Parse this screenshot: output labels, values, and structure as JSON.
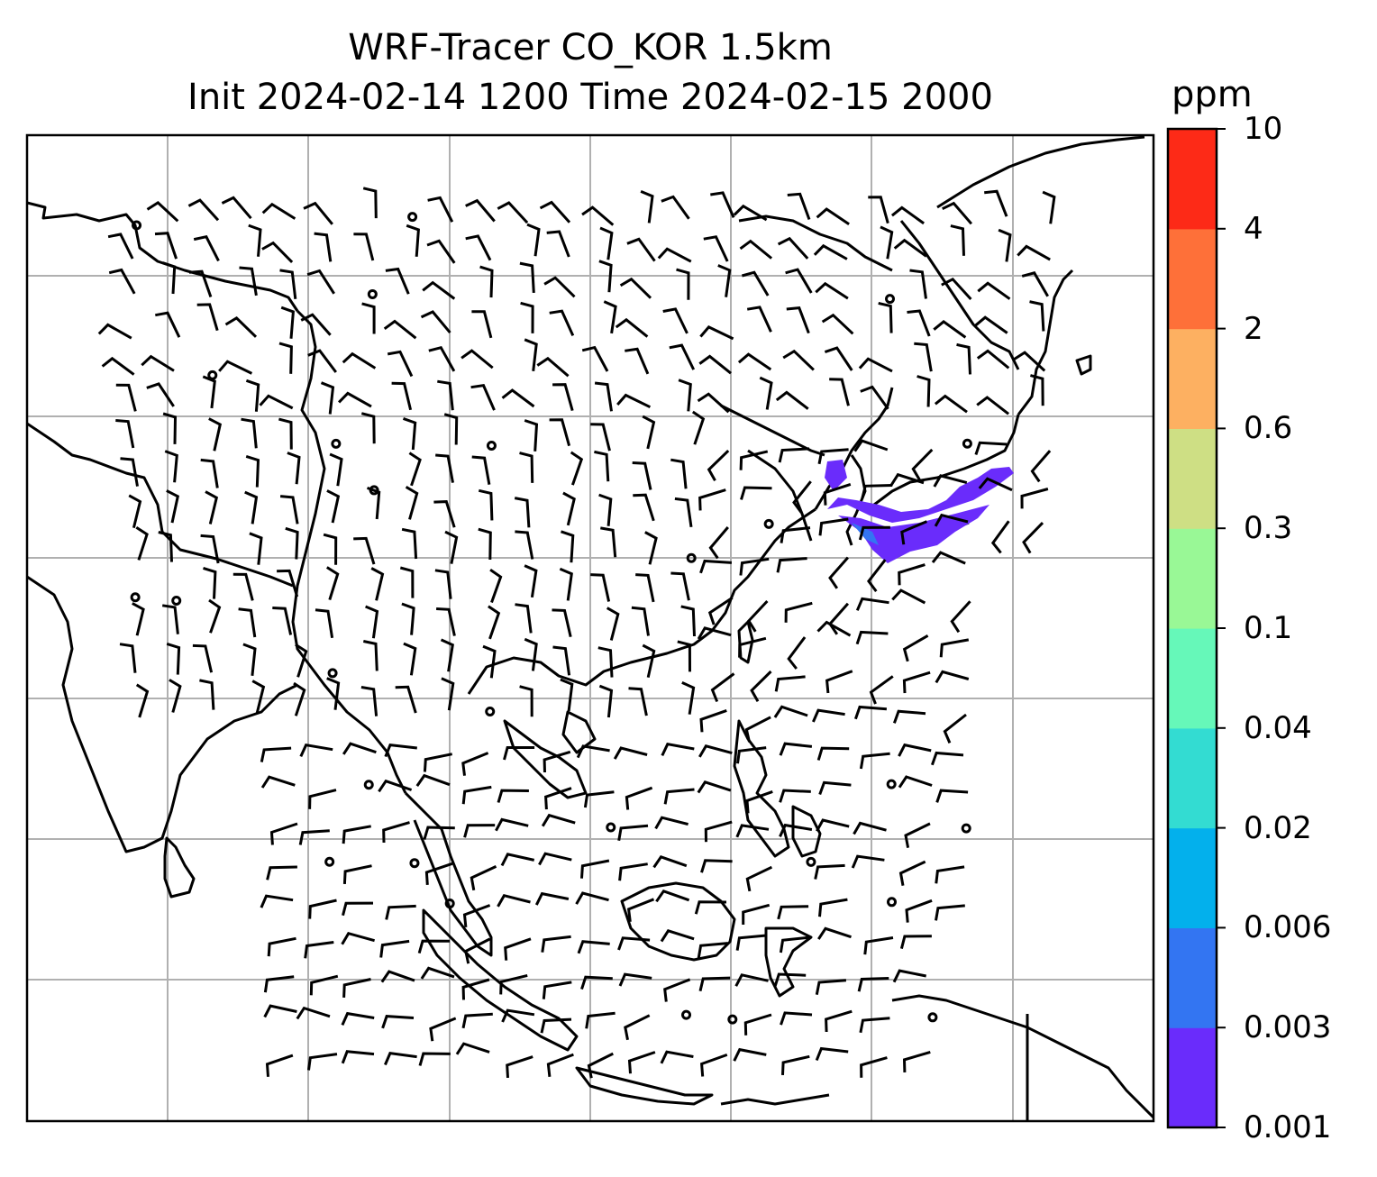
{
  "title_line1": "WRF-Tracer CO_KOR 1.5km",
  "title_line2": "Init 2024-02-14 1200 Time 2024-02-15 2000",
  "colorbar": {
    "unit": "ppm",
    "levels": [
      "0.001",
      "0.003",
      "0.006",
      "0.02",
      "0.04",
      "0.1",
      "0.3",
      "0.6",
      "2",
      "4",
      "10"
    ],
    "colors": [
      "#6a2cfb",
      "#3375f2",
      "#03b0ec",
      "#33dcd2",
      "#66f8b9",
      "#99f896",
      "#cedf84",
      "#fdb061",
      "#fe7039",
      "#fd2a17"
    ]
  },
  "plume_color": "#6a2cfb",
  "plume_edge_color": "#3375f2",
  "gridline_color": "#b0b0b0"
}
